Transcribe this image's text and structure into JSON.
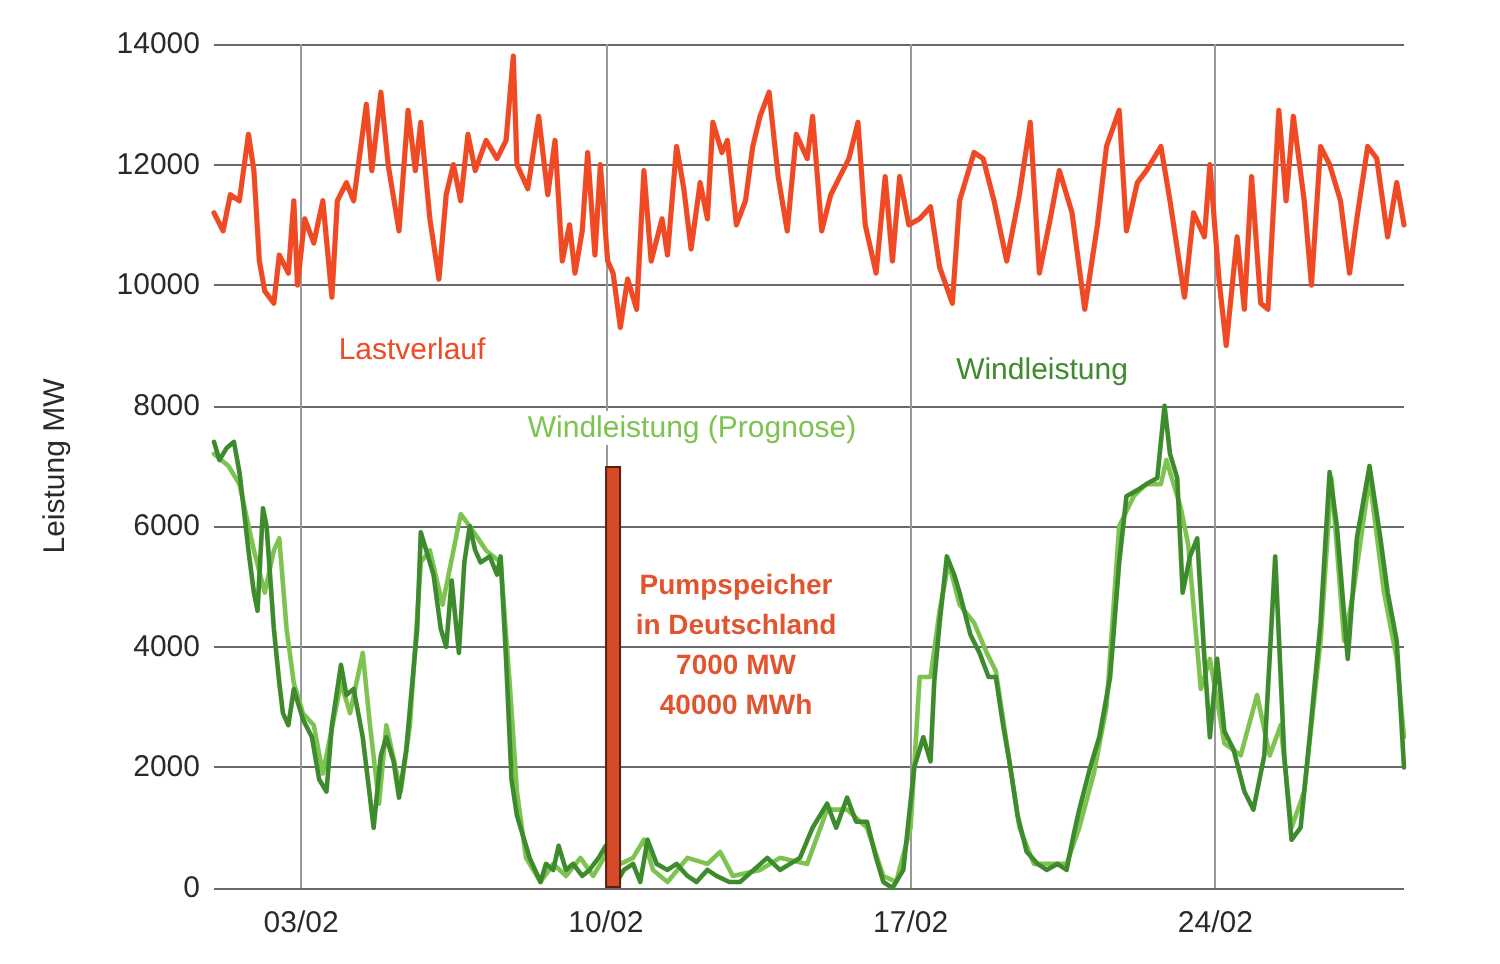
{
  "chart_data": {
    "type": "line",
    "ylabel": "Leistung MW",
    "annotations": [
      "Pumpspeicher\nin Deutschland\n7000 MW\n40000 MWh"
    ],
    "xlim": [
      "--02-01T00:00",
      "--02-28T08:00"
    ],
    "xticks": [
      {
        "value": "--02-03",
        "label": "03/02"
      },
      {
        "value": "--02-10",
        "label": "10/02"
      },
      {
        "value": "--02-17",
        "label": "17/02"
      },
      {
        "value": "--02-24",
        "label": "24/02"
      }
    ],
    "ylim": [
      0,
      14000
    ],
    "yticks": [
      0,
      2000,
      4000,
      6000,
      8000,
      10000,
      12000,
      14000
    ],
    "grid": true,
    "series": [
      {
        "name": "Lastverlauf",
        "color": "#ef4a24",
        "x": [
          "--02-01T00:00",
          "--02-01T05:00",
          "--02-01T09:00",
          "--02-01T14:00",
          "--02-01T19:00",
          "--02-01T22:00",
          "--02-02T01:00",
          "--02-02T04:00",
          "--02-02T09:00",
          "--02-02T12:00",
          "--02-02T17:00",
          "--02-02T20:00",
          "--02-02T22:00",
          "--02-03T02:00",
          "--02-03T07:00",
          "--02-03T12:00",
          "--02-03T17:00",
          "--02-03T20:00",
          "--02-04T01:00",
          "--02-04T05:00",
          "--02-04T12:00",
          "--02-04T15:00",
          "--02-04T20:00",
          "--02-05T00:00",
          "--02-05T06:00",
          "--02-05T11:00",
          "--02-05T15:00",
          "--02-05T18:00",
          "--02-05T23:00",
          "--02-06T04:00",
          "--02-06T08:00",
          "--02-06T12:00",
          "--02-06T16:00",
          "--02-06T20:00",
          "--02-07T00:00",
          "--02-07T06:00",
          "--02-07T12:00",
          "--02-07T17:00",
          "--02-07T21:00",
          "--02-07T23:00",
          "--02-08T05:00",
          "--02-08T11:00",
          "--02-08T16:00",
          "--02-08T20:00",
          "--02-09T00:00",
          "--02-09T04:00",
          "--02-09T07:00",
          "--02-09T11:00",
          "--02-09T14:00",
          "--02-09T18:00",
          "--02-09T21:00",
          "--02-10T01:00",
          "--02-10T04:00",
          "--02-10T08:00",
          "--02-10T12:00",
          "--02-10T17:00",
          "--02-10T21:00",
          "--02-11T01:00",
          "--02-11T07:00",
          "--02-11T10:00",
          "--02-11T15:00",
          "--02-11T19:00",
          "--02-11T23:00",
          "--02-12T04:00",
          "--02-12T08:00",
          "--02-12T11:00",
          "--02-12T16:00",
          "--02-12T19:00",
          "--02-13T00:00",
          "--02-13T05:00",
          "--02-13T09:00",
          "--02-13T13:00",
          "--02-13T18:00",
          "--02-13T23:00",
          "--02-14T04:00",
          "--02-14T09:00",
          "--02-14T15:00",
          "--02-14T18:00",
          "--02-14T23:00",
          "--02-15T04:00",
          "--02-15T09:00",
          "--02-15T14:00",
          "--02-15T19:00",
          "--02-15T23:00",
          "--02-16T05:00",
          "--02-16T10:00",
          "--02-16T14:00",
          "--02-16T18:00",
          "--02-16T23:00",
          "--02-17T05:00",
          "--02-17T11:00",
          "--02-17T16:00",
          "--02-17T23:00",
          "--02-18T03:00",
          "--02-18T11:00",
          "--02-18T16:00",
          "--02-18T22:00",
          "--02-19T05:00",
          "--02-19T12:00",
          "--02-19T18:00",
          "--02-19T23:00",
          "--02-20T05:00",
          "--02-20T10:00",
          "--02-20T17:00",
          "--02-21T00:00",
          "--02-21T07:00",
          "--02-21T12:00",
          "--02-21T19:00",
          "--02-21T23:00",
          "--02-22T05:00",
          "--02-22T10:00",
          "--02-22T18:00",
          "--02-22T23:00",
          "--02-23T07:00",
          "--02-23T12:00",
          "--02-23T18:00",
          "--02-23T21:00",
          "--02-24T02:00",
          "--02-24T06:00",
          "--02-24T12:00",
          "--02-24T16:00",
          "--02-24T20:00",
          "--02-25T01:00",
          "--02-25T05:00",
          "--02-25T11:00",
          "--02-25T15:00",
          "--02-25T19:00",
          "--02-26T01:00",
          "--02-26T05:00",
          "--02-26T10:00",
          "--02-26T15:00",
          "--02-26T21:00",
          "--02-27T02:00",
          "--02-27T06:00",
          "--02-27T12:00",
          "--02-27T17:00",
          "--02-27T23:00",
          "--02-28T04:00",
          "--02-28T08:00"
        ],
        "values": [
          11200,
          10900,
          11500,
          11400,
          12500,
          11900,
          10400,
          9900,
          9700,
          10500,
          10200,
          11400,
          10000,
          11100,
          10700,
          11400,
          9800,
          11400,
          11700,
          11400,
          13000,
          11900,
          13200,
          12000,
          10900,
          12900,
          11900,
          12700,
          11100,
          10100,
          11500,
          12000,
          11400,
          12500,
          11900,
          12400,
          12100,
          12400,
          13800,
          12000,
          11600,
          12800,
          11500,
          12400,
          10400,
          11000,
          10200,
          10900,
          12200,
          10500,
          12000,
          10400,
          10200,
          9300,
          10100,
          9600,
          11900,
          10400,
          11100,
          10500,
          12300,
          11600,
          10600,
          11700,
          11100,
          12700,
          12200,
          12400,
          11000,
          11400,
          12300,
          12800,
          13200,
          11800,
          10900,
          12500,
          12100,
          12800,
          10900,
          11500,
          11800,
          12100,
          12700,
          11000,
          10200,
          11800,
          10400,
          11800,
          11000,
          11100,
          11300,
          10300,
          9700,
          11400,
          12200,
          12100,
          11400,
          10400,
          11500,
          12700,
          10200,
          11100,
          11900,
          11200,
          9600,
          11000,
          12300,
          12900,
          10900,
          11700,
          11900,
          12300,
          11400,
          9800,
          11200,
          10800,
          12000,
          10100,
          9000,
          10800,
          9600,
          11800,
          9700,
          9600,
          12900,
          11400,
          12800,
          11400,
          10000,
          12300,
          12000,
          11400,
          10200,
          11100,
          12300,
          12100,
          10800,
          11700,
          11000
        ]
      },
      {
        "name": "Windleistung (Prognose)",
        "color": "#7dc34f",
        "x": [
          "--02-01T00:00",
          "--02-01T08:00",
          "--02-01T14:00",
          "--02-01T22:00",
          "--02-02T04:00",
          "--02-02T09:00",
          "--02-02T12:00",
          "--02-02T16:00",
          "--02-02T20:00",
          "--02-03T01:00",
          "--02-03T07:00",
          "--02-03T12:00",
          "--02-03T18:00",
          "--02-03T22:00",
          "--02-04T03:00",
          "--02-04T10:00",
          "--02-04T14:00",
          "--02-04T19:00",
          "--02-04T23:00",
          "--02-05T07:00",
          "--02-05T12:00",
          "--02-05T18:00",
          "--02-05T23:00",
          "--02-06T06:00",
          "--02-06T16:00",
          "--02-06T21:00",
          "--02-07T06:00",
          "--02-07T14:00",
          "--02-07T19:00",
          "--02-07T23:00",
          "--02-08T04:00",
          "--02-08T12:00",
          "--02-08T19:00",
          "--02-09T02:00",
          "--02-09T10:00",
          "--02-09T17:00",
          "--02-10T01:00",
          "--02-10T08:00",
          "--02-10T15:00",
          "--02-10T21:00",
          "--02-11T02:00",
          "--02-11T10:00",
          "--02-11T21:00",
          "--02-12T08:00",
          "--02-12T15:00",
          "--02-12T22:00",
          "--02-13T13:00",
          "--02-14T00:00",
          "--02-14T15:00",
          "--02-15T02:00",
          "--02-15T13:00",
          "--02-16T00:00",
          "--02-16T09:00",
          "--02-16T16:00",
          "--02-17T00:00",
          "--02-17T05:00",
          "--02-17T11:00",
          "--02-17T16:00",
          "--02-17T21:00",
          "--02-18T03:00",
          "--02-18T11:00",
          "--02-18T18:00",
          "--02-18T23:00",
          "--02-19T05:00",
          "--02-19T12:00",
          "--02-19T20:00",
          "--02-20T07:00",
          "--02-20T14:00",
          "--02-20T21:00",
          "--02-21T05:00",
          "--02-21T12:00",
          "--02-21T19:00",
          "--02-22T03:00",
          "--02-22T10:00",
          "--02-22T18:00",
          "--02-22T21:00",
          "--02-23T05:00",
          "--02-23T09:00",
          "--02-23T16:00",
          "--02-23T21:00",
          "--02-24T05:00",
          "--02-24T14:00",
          "--02-24T23:00",
          "--02-25T06:00",
          "--02-25T12:00",
          "--02-25T18:00",
          "--02-26T01:00",
          "--02-26T10:00",
          "--02-26T16:00",
          "--02-26T23:00",
          "--02-27T04:00",
          "--02-27T13:00",
          "--02-27T21:00",
          "--02-28T04:00",
          "--02-28T08:00"
        ],
        "values": [
          7200,
          7000,
          6700,
          5600,
          4900,
          5600,
          5800,
          4300,
          3400,
          2900,
          2700,
          1900,
          2800,
          3400,
          2900,
          3900,
          2700,
          1400,
          2700,
          1600,
          2700,
          5400,
          5600,
          4700,
          6200,
          6000,
          5600,
          5400,
          3400,
          1600,
          500,
          100,
          400,
          200,
          500,
          200,
          600,
          400,
          500,
          800,
          300,
          100,
          500,
          400,
          600,
          200,
          300,
          500,
          400,
          1300,
          1300,
          1000,
          200,
          100,
          1000,
          3500,
          3500,
          4600,
          5400,
          4700,
          4400,
          3900,
          3600,
          2400,
          1000,
          400,
          400,
          400,
          1000,
          1900,
          3000,
          6000,
          6500,
          6700,
          6700,
          7100,
          6300,
          5700,
          3300,
          3800,
          2400,
          2200,
          3200,
          2200,
          2700,
          1000,
          1600,
          4100,
          6800,
          4100,
          4900,
          6800,
          4900,
          3800,
          2500
        ]
      },
      {
        "name": "Windleistung",
        "color": "#3d8b2d",
        "x": [
          "--02-01T00:00",
          "--02-01T03:00",
          "--02-01T07:00",
          "--02-01T11:00",
          "--02-01T14:00",
          "--02-01T16:00",
          "--02-01T19:00",
          "--02-01T22:00",
          "--02-02T00:00",
          "--02-02T03:00",
          "--02-02T05:00",
          "--02-02T09:00",
          "--02-02T12:00",
          "--02-02T14:00",
          "--02-02T17:00",
          "--02-02T20:00",
          "--02-03T01:00",
          "--02-03T06:00",
          "--02-03T10:00",
          "--02-03T14:00",
          "--02-03T17:00",
          "--02-03T22:00",
          "--02-04T01:00",
          "--02-04T05:00",
          "--02-04T10:00",
          "--02-04T16:00",
          "--02-04T20:00",
          "--02-04T23:00",
          "--02-05T03:00",
          "--02-05T06:00",
          "--02-05T10:00",
          "--02-05T16:00",
          "--02-05T18:00",
          "--02-05T21:00",
          "--02-06T01:00",
          "--02-06T05:00",
          "--02-06T08:00",
          "--02-06T11:00",
          "--02-06T15:00",
          "--02-06T18:00",
          "--02-06T21:00",
          "--02-07T00:00",
          "--02-07T03:00",
          "--02-07T08:00",
          "--02-07T12:00",
          "--02-07T14:00",
          "--02-07T17:00",
          "--02-07T20:00",
          "--02-07T23:00",
          "--02-08T03:00",
          "--02-08T06:00",
          "--02-08T12:00",
          "--02-08T15:00",
          "--02-08T19:00",
          "--02-08T22:00",
          "--02-09T02:00",
          "--02-09T06:00",
          "--02-09T11:00",
          "--02-09T15:00",
          "--02-09T20:00",
          "--02-10T00:00",
          "--02-10T02:00",
          "--02-10T06:00",
          "--02-10T10:00",
          "--02-10T15:00",
          "--02-10T19:00",
          "--02-10T23:00",
          "--02-11T04:00",
          "--02-11T10:00",
          "--02-11T15:00",
          "--02-11T21:00",
          "--02-12T02:00",
          "--02-12T08:00",
          "--02-12T13:00",
          "--02-12T20:00",
          "--02-13T02:00",
          "--02-13T17:00",
          "--02-14T00:00",
          "--02-14T11:00",
          "--02-14T18:00",
          "--02-15T02:00",
          "--02-15T07:00",
          "--02-15T13:00",
          "--02-15T18:00",
          "--02-16T00:00",
          "--02-16T05:00",
          "--02-16T09:00",
          "--02-16T14:00",
          "--02-16T20:00",
          "--02-17T02:00",
          "--02-17T07:00",
          "--02-17T11:00",
          "--02-17T13:00",
          "--02-17T16:00",
          "--02-17T20:00",
          "--02-18T00:00",
          "--02-18T03:00",
          "--02-18T09:00",
          "--02-18T14:00",
          "--02-18T19:00",
          "--02-18T23:00",
          "--02-19T03:00",
          "--02-19T07:00",
          "--02-19T11:00",
          "--02-19T16:00",
          "--02-19T22:00",
          "--02-20T03:00",
          "--02-20T09:00",
          "--02-20T14:00",
          "--02-20T18:00",
          "--02-20T21:00",
          "--02-21T03:00",
          "--02-21T08:00",
          "--02-21T14:00",
          "--02-21T19:00",
          "--02-21T23:00",
          "--02-22T05:00",
          "--02-22T10:00",
          "--02-22T16:00",
          "--02-22T20:00",
          "--02-22T23:00",
          "--02-23T03:00",
          "--02-23T06:00",
          "--02-23T10:00",
          "--02-23T14:00",
          "--02-23T18:00",
          "--02-23T21:00",
          "--02-24T01:00",
          "--02-24T05:00",
          "--02-24T10:00",
          "--02-24T16:00",
          "--02-24T21:00",
          "--02-25T03:00",
          "--02-25T09:00",
          "--02-25T14:00",
          "--02-25T18:00",
          "--02-25T23:00",
          "--02-26T04:00",
          "--02-26T10:00",
          "--02-26T15:00",
          "--02-26T19:00",
          "--02-27T01:00",
          "--02-27T06:00",
          "--02-27T13:00",
          "--02-27T19:00",
          "--02-27T23:00",
          "--02-28T04:00",
          "--02-28T08:00"
        ],
        "values": [
          7400,
          7100,
          7300,
          7400,
          6900,
          6400,
          5600,
          4900,
          4600,
          6300,
          6000,
          4300,
          3400,
          2900,
          2700,
          3300,
          2800,
          2500,
          1800,
          1600,
          2700,
          3700,
          3200,
          3300,
          2500,
          1000,
          2200,
          2500,
          2100,
          1500,
          2300,
          4300,
          5900,
          5600,
          5200,
          4300,
          4000,
          5100,
          3900,
          5400,
          6000,
          5600,
          5400,
          5500,
          5200,
          5500,
          3800,
          1800,
          1200,
          800,
          500,
          100,
          400,
          300,
          700,
          300,
          400,
          200,
          300,
          500,
          700,
          300,
          100,
          300,
          400,
          100,
          800,
          400,
          300,
          400,
          200,
          100,
          300,
          200,
          100,
          100,
          500,
          300,
          500,
          1000,
          1400,
          1000,
          1500,
          1100,
          1100,
          500,
          100,
          0,
          300,
          2000,
          2500,
          2100,
          3400,
          4400,
          5500,
          5200,
          4900,
          4200,
          3900,
          3500,
          3500,
          2700,
          2000,
          1200,
          600,
          400,
          300,
          400,
          300,
          900,
          1300,
          2000,
          2500,
          3500,
          5400,
          6500,
          6600,
          6700,
          6800,
          8000,
          7200,
          6800,
          4900,
          5500,
          5800,
          3800,
          2500,
          3800,
          2600,
          2300,
          1600,
          1300,
          2200,
          5500,
          2200,
          800,
          1000,
          2500,
          4400,
          6900,
          6000,
          3800,
          5800,
          7000,
          5800,
          4900,
          4100,
          2000
        ]
      },
      {
        "type": "bar",
        "color": "#d64b27",
        "x": [
          "--02-10T04:00"
        ],
        "values": [
          7000
        ]
      }
    ]
  }
}
